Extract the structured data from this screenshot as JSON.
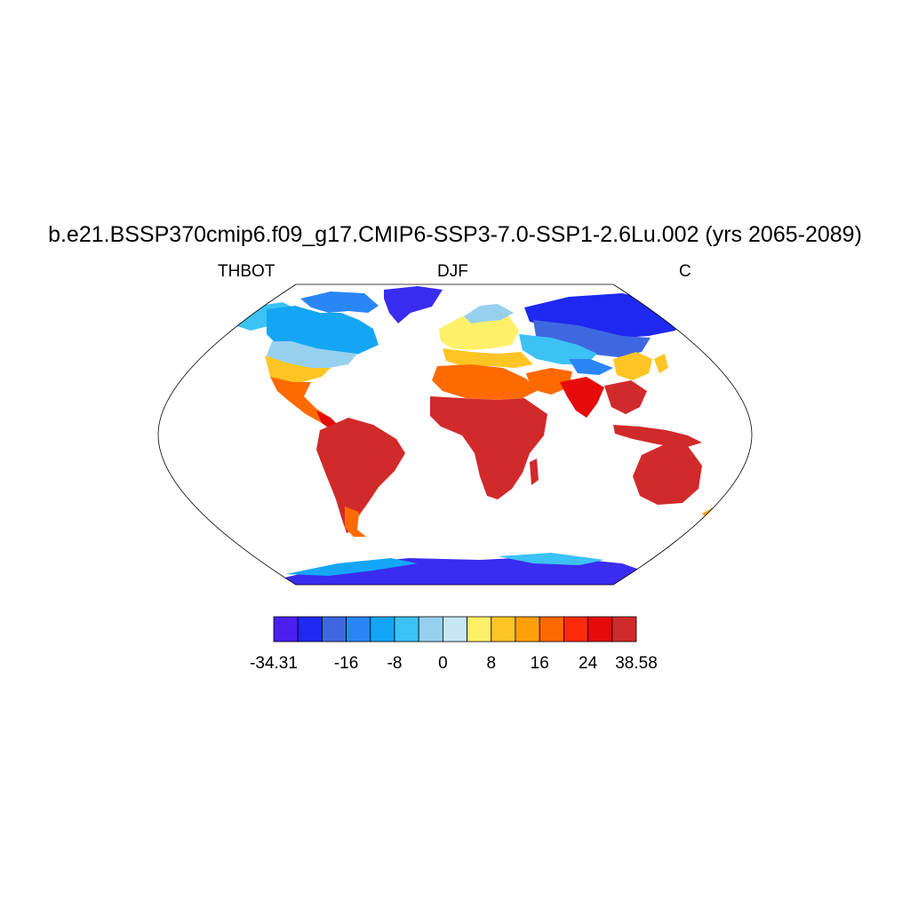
{
  "title": "b.e21.BSSP370cmip6.f09_g17.CMIP6-SSP3-7.0-SSP1-2.6Lu.002 (yrs 2065-2089)",
  "subtitle_left": "THBOT",
  "subtitle_center": "DJF",
  "subtitle_right": "C",
  "colorbar": {
    "colors": [
      "#4a1ff0",
      "#1e28f0",
      "#3f68e0",
      "#2a86f5",
      "#14a6f5",
      "#3cc2f5",
      "#96d0ee",
      "#c6e6f6",
      "#fff06a",
      "#ffc524",
      "#ffa00a",
      "#ff6a00",
      "#ff2a0a",
      "#e60a0a",
      "#d12a2a"
    ],
    "labels": [
      "-34.31",
      "-16",
      "-8",
      "0",
      "8",
      "16",
      "24",
      "38.58"
    ],
    "label_boundaries": [
      0,
      3,
      5,
      7,
      9,
      11,
      13,
      15
    ]
  },
  "map": {
    "projection": "Robinson (world)",
    "variable": "THBOT",
    "season": "DJF",
    "units": "C"
  }
}
